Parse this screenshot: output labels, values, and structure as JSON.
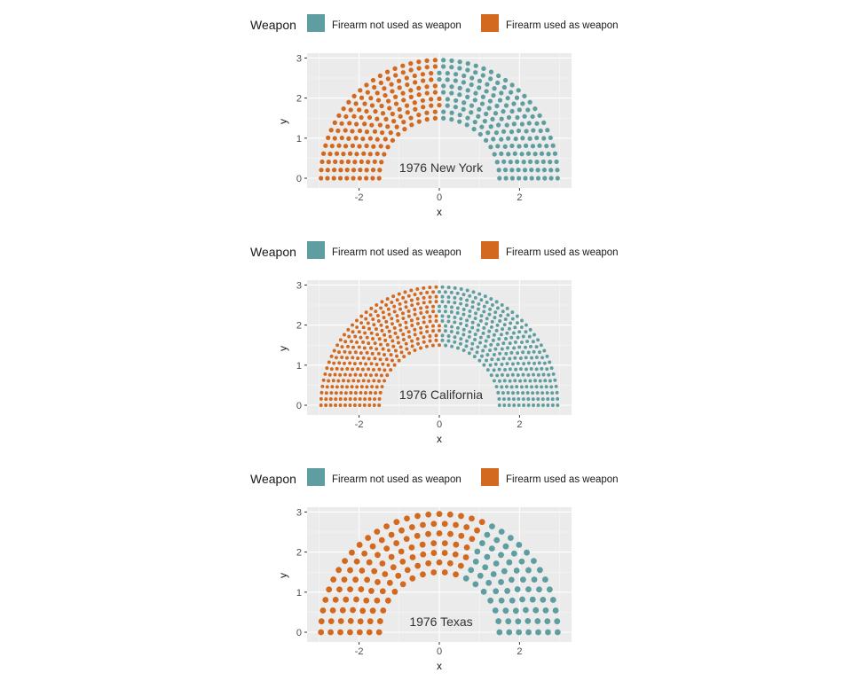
{
  "legend": {
    "title": "Weapon",
    "items": [
      {
        "label": "Firearm not used as weapon",
        "color": "#5f9ea0"
      },
      {
        "label": "Firearm used as weapon",
        "color": "#d2691e"
      }
    ]
  },
  "chart_data": [
    {
      "type": "scatter",
      "subtype": "parliament",
      "annotation": "1976 New York",
      "xlabel": "x",
      "ylabel": "y",
      "xlim": [
        -3.0,
        3.0
      ],
      "ylim": [
        0,
        3
      ],
      "x_ticks": [
        -2,
        0,
        2
      ],
      "y_ticks": [
        0,
        1,
        2,
        3
      ],
      "grid": true,
      "legend_position": "top",
      "inner_radius": 1.5,
      "outer_radius": 2.95,
      "rows": 10,
      "total_points": 350,
      "series": [
        {
          "name": "Firearm used as weapon",
          "color": "#d2691e",
          "count": 175
        },
        {
          "name": "Firearm not used as weapon",
          "color": "#5f9ea0",
          "count": 175
        }
      ]
    },
    {
      "type": "scatter",
      "subtype": "parliament",
      "annotation": "1976 California",
      "xlabel": "x",
      "ylabel": "y",
      "xlim": [
        -3.0,
        3.0
      ],
      "ylim": [
        0,
        3
      ],
      "x_ticks": [
        -2,
        0,
        2
      ],
      "y_ticks": [
        0,
        1,
        2,
        3
      ],
      "grid": true,
      "legend_position": "top",
      "inner_radius": 1.5,
      "outer_radius": 2.95,
      "rows": 13,
      "total_points": 600,
      "series": [
        {
          "name": "Firearm used as weapon",
          "color": "#d2691e",
          "count": 300
        },
        {
          "name": "Firearm not used as weapon",
          "color": "#5f9ea0",
          "count": 300
        }
      ]
    },
    {
      "type": "scatter",
      "subtype": "parliament",
      "annotation": "1976 Texas",
      "xlabel": "x",
      "ylabel": "y",
      "xlim": [
        -3.0,
        3.0
      ],
      "ylim": [
        0,
        3
      ],
      "x_ticks": [
        -2,
        0,
        2
      ],
      "y_ticks": [
        0,
        1,
        2,
        3
      ],
      "grid": true,
      "legend_position": "top",
      "inner_radius": 1.5,
      "outer_radius": 2.95,
      "rows": 7,
      "total_points": 185,
      "series": [
        {
          "name": "Firearm used as weapon",
          "color": "#d2691e",
          "count": 115
        },
        {
          "name": "Firearm not used as weapon",
          "color": "#5f9ea0",
          "count": 70
        }
      ]
    }
  ]
}
